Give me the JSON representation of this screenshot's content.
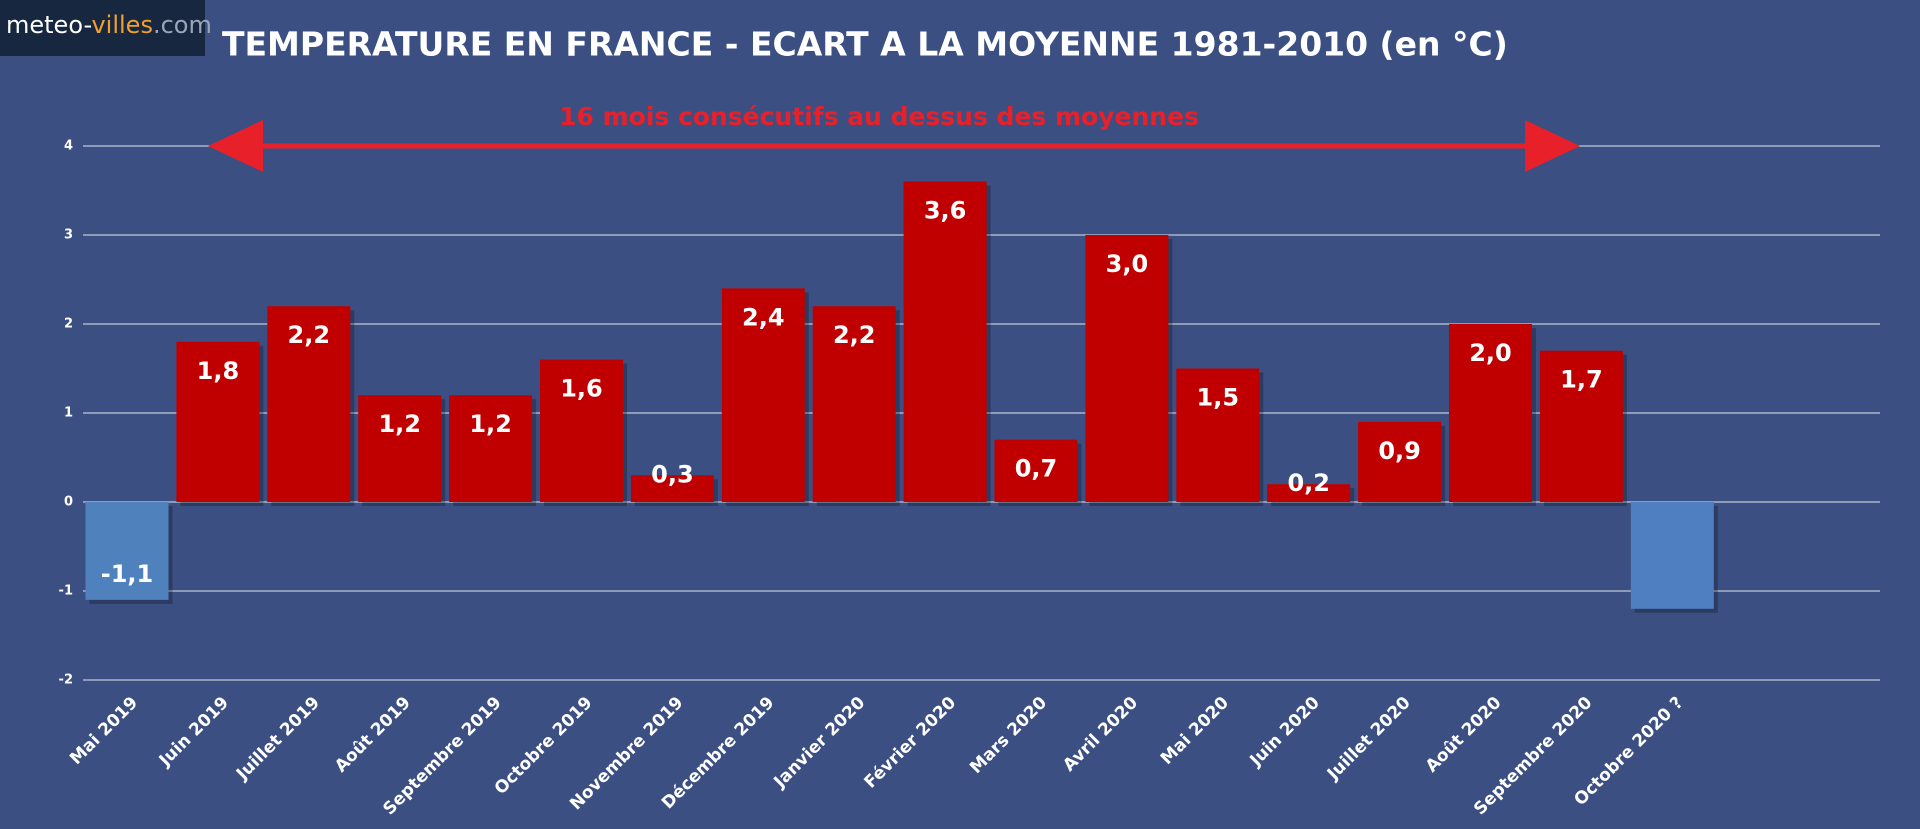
{
  "brand": {
    "parts": [
      "meteo-",
      "villes",
      ".com"
    ]
  },
  "chart_data": {
    "type": "bar",
    "title": "TEMPERATURE EN FRANCE - ECART A LA MOYENNE 1981-2010 (en °C)",
    "annotation": "16 mois consécutifs au dessus des moyennes",
    "categories": [
      "Mai 2019",
      "Juin 2019",
      "Juillet 2019",
      "Août 2019",
      "Septembre 2019",
      "Octobre 2019",
      "Novembre 2019",
      "Décembre 2019",
      "Janvier 2020",
      "Février 2020",
      "Mars 2020",
      "Avril 2020",
      "Mai 2020",
      "Juin 2020",
      "Juillet 2020",
      "Août 2020",
      "Septembre 2020",
      "Octobre 2020 ?"
    ],
    "values": [
      -1.1,
      1.8,
      2.2,
      1.2,
      1.2,
      1.6,
      0.3,
      2.4,
      2.2,
      3.6,
      0.7,
      3.0,
      1.5,
      0.2,
      0.9,
      2.0,
      1.7,
      -1.2
    ],
    "value_labels": [
      "-1,1",
      "1,8",
      "2,2",
      "1,2",
      "1,2",
      "1,6",
      "0,3",
      "2,4",
      "2,2",
      "3,6",
      "0,7",
      "3,0",
      "1,5",
      "0,2",
      "0,9",
      "2,0",
      "1,7",
      null
    ],
    "colors": [
      "#4f81bd",
      "#c00000",
      "#c00000",
      "#c00000",
      "#c00000",
      "#c00000",
      "#c00000",
      "#c00000",
      "#c00000",
      "#c00000",
      "#c00000",
      "#c00000",
      "#c00000",
      "#c00000",
      "#c00000",
      "#c00000",
      "#c00000",
      "#4f7fc0"
    ],
    "annotation_color": "#e8202a",
    "ylim": [
      -2,
      4
    ],
    "yticks": [
      -2,
      -1,
      0,
      1,
      2,
      3,
      4
    ],
    "grid": true
  }
}
